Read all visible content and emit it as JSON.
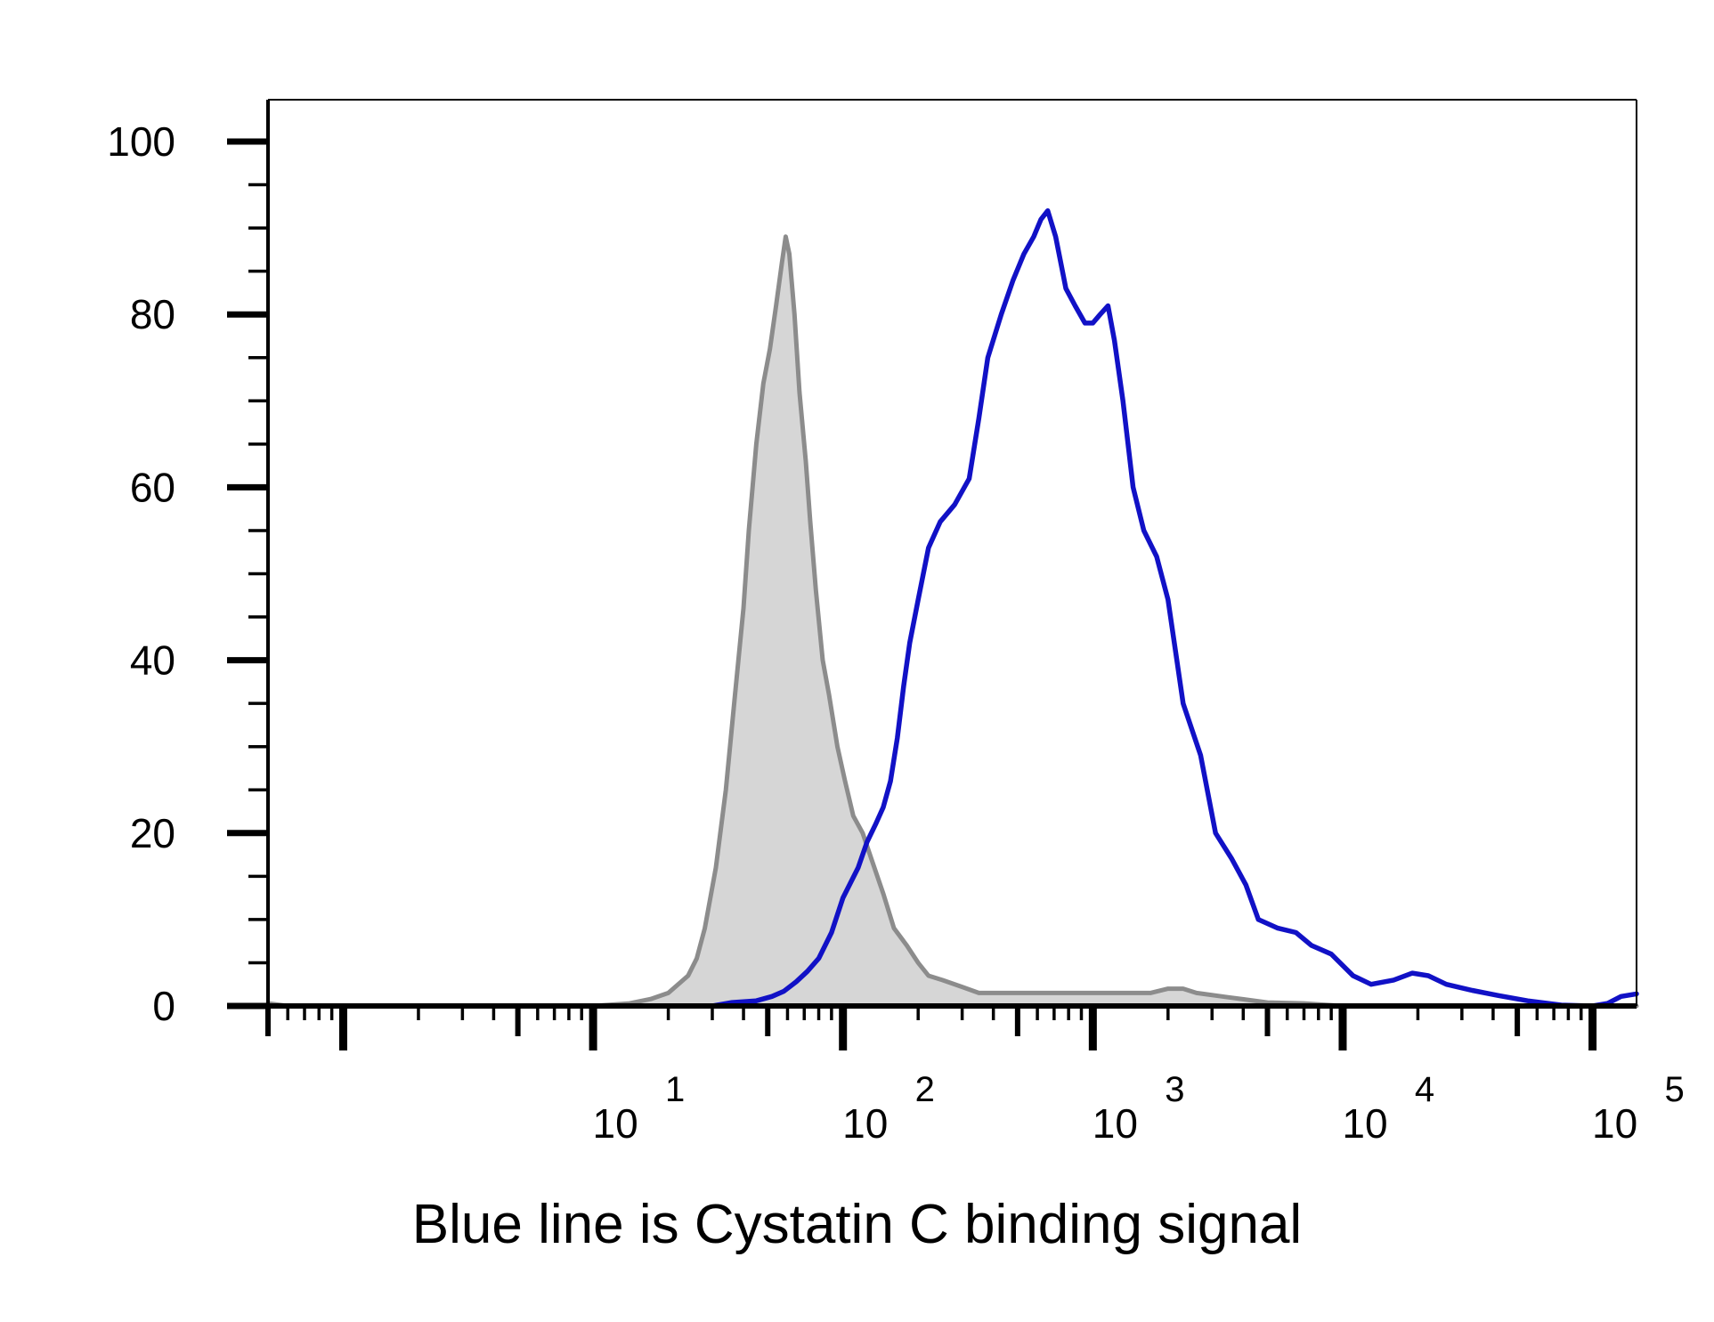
{
  "chart_data": {
    "type": "area",
    "title": "",
    "xlabel": "",
    "ylabel": "",
    "caption": "Blue line is Cystatin C binding signal",
    "x_scale": "log",
    "xlim": [
      0.5,
      150000
    ],
    "ylim": [
      0,
      100
    ],
    "y_ticks": [
      0,
      20,
      40,
      60,
      80,
      100
    ],
    "y_minor_step": 5,
    "x_major_ticks": [
      {
        "value": 10,
        "base": "10",
        "exp": "1"
      },
      {
        "value": 100,
        "base": "10",
        "exp": "2"
      },
      {
        "value": 1000,
        "base": "10",
        "exp": "3"
      },
      {
        "value": 10000,
        "base": "10",
        "exp": "4"
      },
      {
        "value": 100000,
        "base": "10",
        "exp": "5"
      }
    ],
    "grid": false,
    "legend": "none",
    "series": [
      {
        "color": "#8c8c8c",
        "fill": "#d6d6d6",
        "filled": true,
        "points": [
          [
            0.5,
            0.3
          ],
          [
            0.6,
            0
          ],
          [
            3,
            0
          ],
          [
            10,
            0
          ],
          [
            14,
            0.3
          ],
          [
            17,
            0.8
          ],
          [
            20,
            1.5
          ],
          [
            24,
            3.5
          ],
          [
            26,
            5.5
          ],
          [
            28,
            9
          ],
          [
            31,
            16
          ],
          [
            34,
            25
          ],
          [
            37,
            36
          ],
          [
            40,
            46
          ],
          [
            42,
            55
          ],
          [
            45,
            65
          ],
          [
            48,
            72
          ],
          [
            51,
            76
          ],
          [
            54,
            81
          ],
          [
            57,
            86
          ],
          [
            59,
            89
          ],
          [
            61,
            87
          ],
          [
            64,
            80
          ],
          [
            67,
            71
          ],
          [
            71,
            63
          ],
          [
            74,
            56
          ],
          [
            78,
            48
          ],
          [
            83,
            40
          ],
          [
            88,
            36
          ],
          [
            95,
            30
          ],
          [
            102,
            26
          ],
          [
            110,
            22
          ],
          [
            120,
            20
          ],
          [
            130,
            17
          ],
          [
            145,
            13
          ],
          [
            160,
            9
          ],
          [
            180,
            7
          ],
          [
            200,
            5
          ],
          [
            220,
            3.5
          ],
          [
            250,
            3
          ],
          [
            300,
            2.2
          ],
          [
            350,
            1.5
          ],
          [
            450,
            1.5
          ],
          [
            700,
            1.5
          ],
          [
            1200,
            1.5
          ],
          [
            1700,
            1.5
          ],
          [
            2000,
            2
          ],
          [
            2300,
            2
          ],
          [
            2600,
            1.5
          ],
          [
            3500,
            1
          ],
          [
            5000,
            0.4
          ],
          [
            7000,
            0.3
          ],
          [
            10000,
            0
          ],
          [
            150000,
            0
          ]
        ]
      },
      {
        "color": "#1111c6",
        "fill": "none",
        "filled": false,
        "points": [
          [
            0.6,
            0
          ],
          [
            10,
            0
          ],
          [
            30,
            0
          ],
          [
            36,
            0.4
          ],
          [
            45,
            0.6
          ],
          [
            52,
            1.1
          ],
          [
            58,
            1.7
          ],
          [
            65,
            2.8
          ],
          [
            72,
            4
          ],
          [
            80,
            5.5
          ],
          [
            90,
            8.5
          ],
          [
            100,
            12.5
          ],
          [
            115,
            16
          ],
          [
            125,
            19
          ],
          [
            135,
            21
          ],
          [
            145,
            23
          ],
          [
            155,
            26
          ],
          [
            165,
            31
          ],
          [
            175,
            37
          ],
          [
            185,
            42
          ],
          [
            200,
            47
          ],
          [
            220,
            53
          ],
          [
            245,
            56
          ],
          [
            280,
            58
          ],
          [
            320,
            61
          ],
          [
            350,
            68
          ],
          [
            380,
            75
          ],
          [
            430,
            80
          ],
          [
            480,
            84
          ],
          [
            530,
            87
          ],
          [
            580,
            89
          ],
          [
            620,
            91
          ],
          [
            660,
            92
          ],
          [
            710,
            89
          ],
          [
            780,
            83
          ],
          [
            850,
            81
          ],
          [
            930,
            79
          ],
          [
            1000,
            79
          ],
          [
            1070,
            80
          ],
          [
            1150,
            81
          ],
          [
            1220,
            77
          ],
          [
            1320,
            70
          ],
          [
            1450,
            60
          ],
          [
            1600,
            55
          ],
          [
            1800,
            52
          ],
          [
            2000,
            47
          ],
          [
            2300,
            35
          ],
          [
            2700,
            29
          ],
          [
            3100,
            20
          ],
          [
            3600,
            17
          ],
          [
            4100,
            14
          ],
          [
            4600,
            10
          ],
          [
            5500,
            9
          ],
          [
            6500,
            8.5
          ],
          [
            7500,
            7
          ],
          [
            9000,
            6
          ],
          [
            11000,
            3.5
          ],
          [
            13000,
            2.5
          ],
          [
            16000,
            3
          ],
          [
            19000,
            3.8
          ],
          [
            22000,
            3.5
          ],
          [
            26000,
            2.5
          ],
          [
            33000,
            1.8
          ],
          [
            42000,
            1.2
          ],
          [
            55000,
            0.6
          ],
          [
            75000,
            0.1
          ],
          [
            100000,
            0
          ],
          [
            115000,
            0.3
          ],
          [
            130000,
            1.1
          ],
          [
            150000,
            1.4
          ]
        ]
      }
    ]
  }
}
